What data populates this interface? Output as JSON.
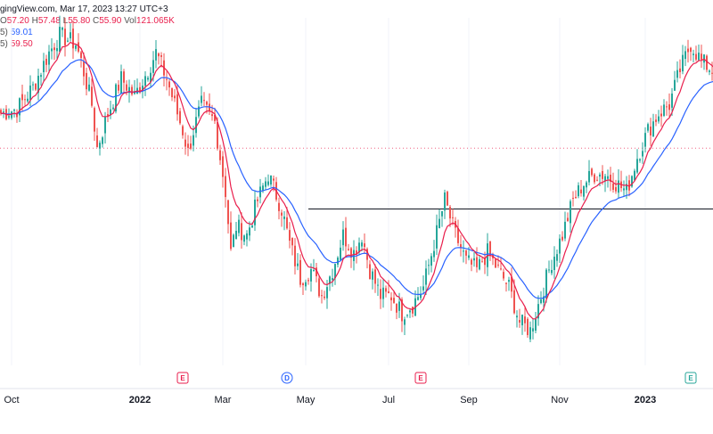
{
  "header": {
    "source": "gingView.com, Mar 17, 2023 13:27 UTC+3",
    "ohlc": {
      "o_label": "O",
      "o_value": "57.20",
      "h_label": "H",
      "h_value": "57.48",
      "l_label": "L",
      "l_value": "55.80",
      "c_label": "C",
      "c_value": "55.90",
      "vol_label": "Vol",
      "vol_value": "121.065K"
    },
    "ma_slow": {
      "label": "5)",
      "value": "59.01"
    },
    "ma_fast": {
      "label": "5)",
      "value": "59.50"
    }
  },
  "colors": {
    "up": "#26a69a",
    "down": "#ef5350",
    "ma_fast": "#e91e4c",
    "ma_slow": "#2962ff",
    "resistance": "#131722",
    "dotted": "#e91e4c",
    "earnings": "#e91e4c",
    "dividend": "#2962ff",
    "earnings_green": "#26a69a"
  },
  "chart_data": {
    "type": "candlestick",
    "x_ticks": [
      {
        "label": "Oct",
        "bold": false
      },
      {
        "label": "2022",
        "bold": true
      },
      {
        "label": "Mar",
        "bold": false
      },
      {
        "label": "May",
        "bold": false
      },
      {
        "label": "Jul",
        "bold": false
      },
      {
        "label": "Sep",
        "bold": false
      },
      {
        "label": "Nov",
        "bold": false
      },
      {
        "label": "2023",
        "bold": true
      }
    ],
    "events": [
      {
        "label": "E",
        "kind": "earnings",
        "index": 68
      },
      {
        "label": "D",
        "kind": "dividend",
        "index": 107
      },
      {
        "label": "E",
        "kind": "earnings",
        "index": 157
      },
      {
        "label": "E",
        "kind": "earnings_green",
        "index": 258
      }
    ],
    "resistance_level": 55.0,
    "dotted_level": 62.0,
    "ylim": [
      37,
      77
    ],
    "series": [
      {
        "name": "MA slow",
        "values": []
      },
      {
        "name": "MA fast",
        "values": []
      }
    ],
    "anchors": [
      [
        0,
        66
      ],
      [
        6,
        66.5
      ],
      [
        12,
        69
      ],
      [
        18,
        73
      ],
      [
        22,
        75
      ],
      [
        28,
        74
      ],
      [
        30,
        72
      ],
      [
        34,
        67
      ],
      [
        36,
        62
      ],
      [
        40,
        66
      ],
      [
        45,
        70
      ],
      [
        50,
        68
      ],
      [
        55,
        71
      ],
      [
        58,
        73
      ],
      [
        62,
        70
      ],
      [
        65,
        67
      ],
      [
        68,
        64
      ],
      [
        70,
        61.5
      ],
      [
        72,
        64
      ],
      [
        75,
        67
      ],
      [
        80,
        65
      ],
      [
        84,
        57
      ],
      [
        86,
        50
      ],
      [
        88,
        53
      ],
      [
        92,
        52
      ],
      [
        96,
        56
      ],
      [
        100,
        59
      ],
      [
        105,
        55
      ],
      [
        108,
        51
      ],
      [
        112,
        47
      ],
      [
        116,
        48
      ],
      [
        120,
        45
      ],
      [
        124,
        48
      ],
      [
        128,
        52
      ],
      [
        132,
        50
      ],
      [
        135,
        52
      ],
      [
        138,
        48
      ],
      [
        142,
        45
      ],
      [
        146,
        45
      ],
      [
        150,
        43
      ],
      [
        154,
        44
      ],
      [
        158,
        46
      ],
      [
        162,
        51
      ],
      [
        166,
        56
      ],
      [
        170,
        52
      ],
      [
        174,
        49
      ],
      [
        178,
        48
      ],
      [
        182,
        50
      ],
      [
        186,
        48
      ],
      [
        190,
        46
      ],
      [
        194,
        42
      ],
      [
        198,
        41
      ],
      [
        202,
        45
      ],
      [
        206,
        49
      ],
      [
        210,
        52
      ],
      [
        214,
        56
      ],
      [
        218,
        58
      ],
      [
        222,
        59
      ],
      [
        226,
        59
      ],
      [
        230,
        58
      ],
      [
        234,
        57
      ],
      [
        238,
        61
      ],
      [
        242,
        64
      ],
      [
        246,
        66
      ],
      [
        250,
        67
      ],
      [
        254,
        71
      ],
      [
        258,
        74
      ],
      [
        262,
        72
      ],
      [
        266,
        71
      ]
    ]
  }
}
